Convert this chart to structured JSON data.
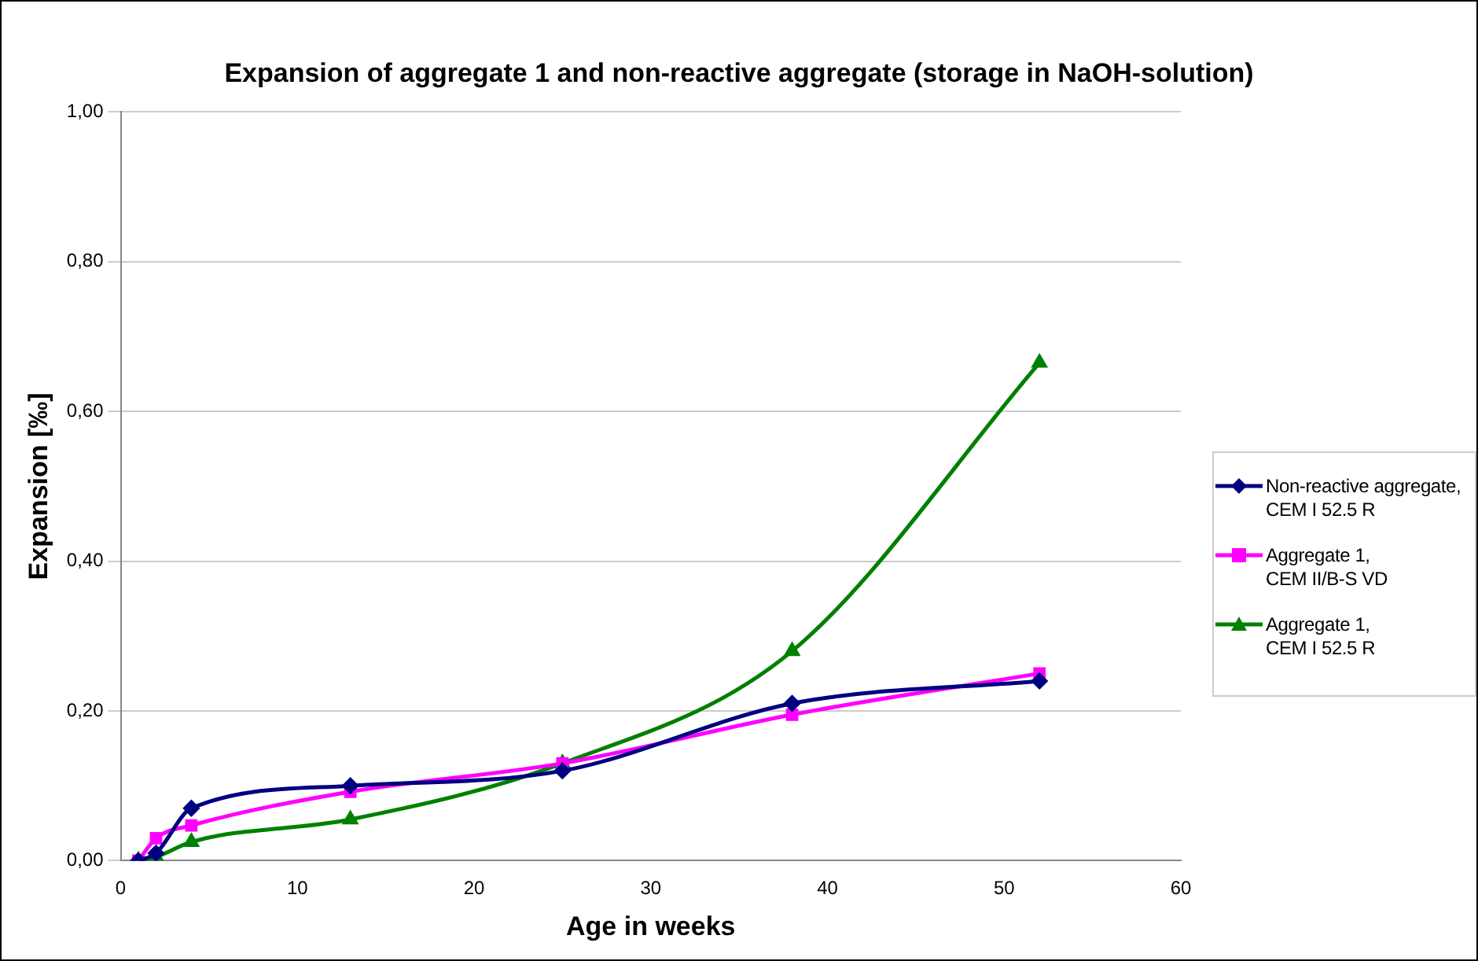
{
  "chart_data": {
    "type": "line",
    "title": "Expansion of aggregate 1 and non-reactive aggregate (storage in NaOH-solution)",
    "xlabel": "Age in weeks",
    "ylabel": "Expansion [‰]",
    "x": [
      1,
      2,
      4,
      13,
      25,
      38,
      52
    ],
    "series": [
      {
        "name": "Non-reactive aggregate,\nCEM I 52.5 R",
        "color": "#000080",
        "marker": "diamond",
        "values": [
          0,
          0.01,
          0.07,
          0.1,
          0.12,
          0.21,
          0.24
        ]
      },
      {
        "name": "Aggregate 1,\nCEM II/B-S VD",
        "color": "#ff00ff",
        "marker": "square",
        "values": [
          0,
          0.03,
          0.047,
          0.092,
          0.13,
          0.195,
          0.25
        ]
      },
      {
        "name": "Aggregate 1,\nCEM I 52.5 R",
        "color": "#008000",
        "marker": "triangle",
        "values": [
          0,
          0.005,
          0.025,
          0.055,
          0.13,
          0.28,
          0.665
        ]
      }
    ],
    "xlim": [
      0,
      60
    ],
    "xticks": [
      0,
      10,
      20,
      30,
      40,
      50,
      60
    ],
    "ylim": [
      0,
      1
    ],
    "yticks": [
      {
        "value": 0,
        "label": "0,00"
      },
      {
        "value": 0.2,
        "label": "0,20"
      },
      {
        "value": 0.4,
        "label": "0,40"
      },
      {
        "value": 0.6,
        "label": "0,60"
      },
      {
        "value": 0.8,
        "label": "0,80"
      },
      {
        "value": 1,
        "label": "1,00"
      }
    ],
    "grid": "y",
    "legend": "right",
    "line_style": "solid"
  }
}
